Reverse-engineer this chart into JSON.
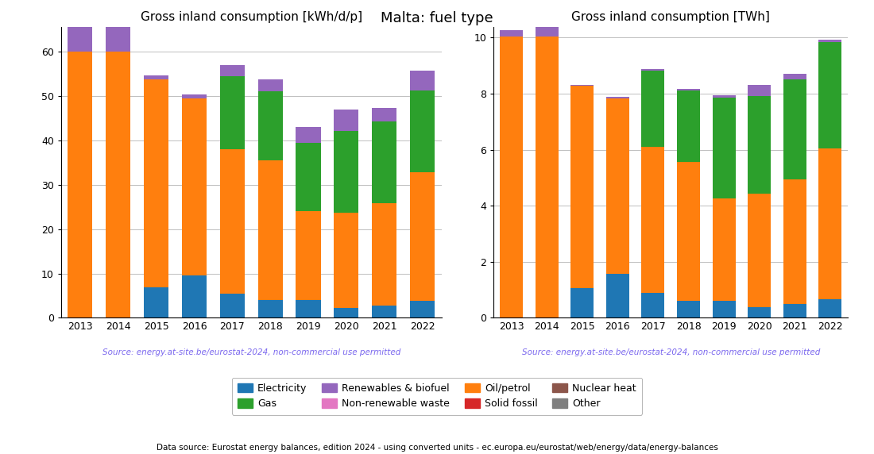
{
  "title": "Malta: fuel type",
  "subtitle_left": "Gross inland consumption [kWh/d/p]",
  "subtitle_right": "Gross inland consumption [TWh]",
  "source_text": "Source: energy.at-site.be/eurostat-2024, non-commercial use permitted",
  "footer_text": "Data source: Eurostat energy balances, edition 2024 - using converted units - ec.europa.eu/eurostat/web/energy/data/energy-balances",
  "years": [
    2013,
    2014,
    2015,
    2016,
    2017,
    2018,
    2019,
    2020,
    2021,
    2022
  ],
  "fuel_types": [
    "Electricity",
    "Oil/petrol",
    "Gas",
    "Solid fossil",
    "Nuclear heat",
    "Renewables & biofuel",
    "Non-renewable waste",
    "Other"
  ],
  "colors": {
    "Electricity": "#1f77b4",
    "Oil/petrol": "#ff7f0e",
    "Gas": "#2ca02c",
    "Solid fossil": "#d62728",
    "Nuclear heat": "#8c564b",
    "Renewables & biofuel": "#9467bd",
    "Non-renewable waste": "#e377c2",
    "Other": "#7f7f7f"
  },
  "kwhd": {
    "Electricity": [
      0.0,
      0.0,
      6.8,
      9.5,
      5.5,
      4.0,
      4.0,
      2.2,
      2.8,
      3.8
    ],
    "Oil/petrol": [
      60.0,
      60.0,
      47.0,
      40.0,
      32.5,
      31.5,
      20.0,
      21.5,
      23.0,
      29.0
    ],
    "Gas": [
      0.0,
      0.0,
      0.0,
      0.0,
      16.5,
      15.5,
      15.5,
      18.5,
      18.5,
      18.5
    ],
    "Solid fossil": [
      0.0,
      0.0,
      0.0,
      0.0,
      0.0,
      0.0,
      0.0,
      0.0,
      0.0,
      0.0
    ],
    "Nuclear heat": [
      0.0,
      0.0,
      0.0,
      0.0,
      0.0,
      0.0,
      0.0,
      0.0,
      0.0,
      0.0
    ],
    "Renewables & biofuel": [
      5.5,
      5.5,
      0.8,
      0.8,
      2.5,
      2.8,
      3.5,
      4.8,
      3.0,
      4.5
    ],
    "Non-renewable waste": [
      0.0,
      0.0,
      0.0,
      0.0,
      0.0,
      0.0,
      0.0,
      0.0,
      0.0,
      0.0
    ],
    "Other": [
      0.0,
      0.0,
      0.0,
      0.0,
      0.0,
      0.0,
      0.0,
      0.0,
      0.0,
      0.0
    ]
  },
  "twh": {
    "Electricity": [
      0.0,
      0.0,
      1.05,
      1.58,
      0.88,
      0.62,
      0.62,
      0.37,
      0.48,
      0.65
    ],
    "Oil/petrol": [
      10.05,
      10.05,
      7.22,
      6.25,
      5.22,
      4.95,
      3.63,
      4.05,
      4.45,
      5.4
    ],
    "Gas": [
      0.0,
      0.0,
      0.0,
      0.0,
      2.72,
      2.55,
      3.62,
      3.5,
      3.58,
      3.8
    ],
    "Solid fossil": [
      0.0,
      0.0,
      0.0,
      0.0,
      0.0,
      0.0,
      0.0,
      0.0,
      0.0,
      0.0
    ],
    "Nuclear heat": [
      0.0,
      0.0,
      0.0,
      0.0,
      0.0,
      0.0,
      0.0,
      0.0,
      0.0,
      0.0
    ],
    "Renewables & biofuel": [
      0.22,
      0.32,
      0.05,
      0.05,
      0.05,
      0.05,
      0.08,
      0.4,
      0.2,
      0.08
    ],
    "Non-renewable waste": [
      0.0,
      0.0,
      0.0,
      0.0,
      0.0,
      0.0,
      0.0,
      0.0,
      0.0,
      0.0
    ],
    "Other": [
      0.0,
      0.0,
      0.0,
      0.0,
      0.0,
      0.0,
      0.0,
      0.0,
      0.0,
      0.0
    ]
  },
  "legend_order": [
    "Electricity",
    "Gas",
    "Renewables & biofuel",
    "Non-renewable waste",
    "Oil/petrol",
    "Solid fossil",
    "Nuclear heat",
    "Other"
  ]
}
